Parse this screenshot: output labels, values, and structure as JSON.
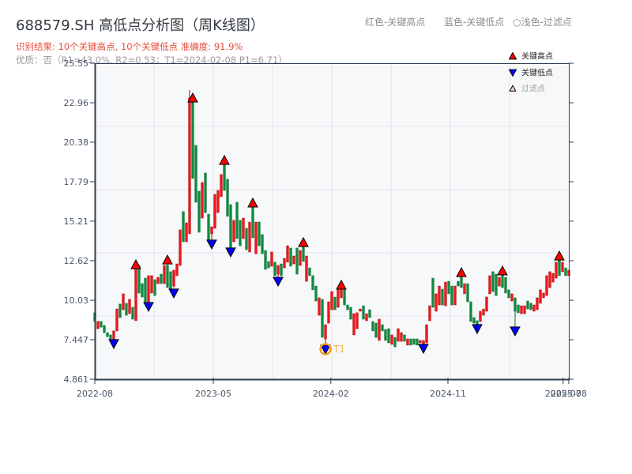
{
  "header": {
    "title": "688579.SH 高低点分析图（周K线图）",
    "result_line": "识别结果: 10个关键高点, 10个关键低点  准确度: 91.9%",
    "quality_line": "优质：否（R1=43.0%, R2=0.53；T1=2024-02-08 P1=6.71）",
    "color_key": [
      "红色-关键高点",
      "蓝色-关键低点",
      "○浅色-过滤点"
    ]
  },
  "colors": {
    "up_fill": "#f0161c",
    "up_stroke": "#b80000",
    "down_fill": "#0c8c3c",
    "down_stroke": "#08702f",
    "high_marker": "#ff0000",
    "low_marker": "#0000ff",
    "filtered_marker": "#ffd9d9",
    "marker_stroke": "#000000",
    "t1_ring": "#f39c12",
    "t1_text": "#f5b553",
    "plot_bg": "#f6f8fa",
    "grid": "#e1e5ea",
    "axis": "#2c3e50",
    "tick_label": "#4a5568"
  },
  "chart_data": {
    "type": "bar",
    "subtype": "candlestick",
    "title": "688579.SH 高低点分析图（周K线图）",
    "xlabel": "",
    "ylabel": "",
    "ylim": [
      4.861,
      25.55
    ],
    "y_ticks": [
      4.861,
      7.447,
      10.03,
      12.62,
      15.21,
      17.79,
      20.38,
      22.96,
      25.55
    ],
    "y_tick_labels": [
      "4.861",
      "7.447",
      "10.03",
      "12.62",
      "15.21",
      "17.79",
      "20.38",
      "22.96",
      "25.55"
    ],
    "x_ticks": [
      {
        "label": "2022-08",
        "pos": 0.0
      },
      {
        "label": "2023-05",
        "pos": 0.25
      },
      {
        "label": "2024-02",
        "pos": 0.498
      },
      {
        "label": "2024-11",
        "pos": 0.745
      },
      {
        "label": "2025-07",
        "pos": 0.988
      },
      {
        "label": "2025-08",
        "pos": 1.0
      }
    ],
    "grid": {
      "on": true,
      "h_divisions": 5,
      "v_divisions": 8
    },
    "candle_fields": [
      "open",
      "high",
      "low",
      "close"
    ],
    "candles": [
      [
        9.21,
        9.21,
        8.64,
        8.64
      ],
      [
        8.17,
        8.64,
        8.17,
        8.64
      ],
      [
        8.64,
        8.64,
        8.27,
        8.27
      ],
      [
        8.38,
        8.38,
        7.91,
        7.91
      ],
      [
        7.91,
        7.91,
        7.65,
        7.65
      ],
      [
        7.76,
        7.76,
        7.5,
        7.5
      ],
      [
        7.4,
        8.02,
        7.3,
        8.02
      ],
      [
        8.02,
        9.46,
        8.02,
        9.46
      ],
      [
        9.78,
        9.78,
        8.9,
        8.9
      ],
      [
        9.41,
        10.45,
        9.41,
        10.45
      ],
      [
        9.83,
        9.83,
        9.05,
        9.05
      ],
      [
        9.15,
        10.09,
        9.15,
        10.09
      ],
      [
        9.57,
        9.57,
        8.79,
        8.79
      ],
      [
        8.69,
        12.15,
        8.69,
        12.05
      ],
      [
        12.31,
        12.31,
        10.5,
        10.5
      ],
      [
        11.12,
        11.12,
        10.24,
        10.24
      ],
      [
        11.48,
        11.48,
        9.93,
        9.93
      ],
      [
        9.93,
        11.64,
        9.8,
        11.64
      ],
      [
        10.5,
        11.64,
        10.5,
        11.64
      ],
      [
        11.38,
        11.38,
        10.34,
        10.34
      ],
      [
        11.12,
        11.53,
        11.12,
        11.53
      ],
      [
        11.74,
        11.74,
        11.12,
        11.12
      ],
      [
        11.12,
        12.31,
        11.12,
        12.31
      ],
      [
        12.31,
        12.45,
        10.86,
        10.86
      ],
      [
        11.9,
        11.9,
        10.7,
        10.76
      ],
      [
        10.96,
        12.0,
        10.85,
        12.0
      ],
      [
        11.64,
        12.41,
        11.64,
        12.41
      ],
      [
        12.31,
        14.64,
        12.31,
        14.64
      ],
      [
        15.83,
        15.83,
        13.86,
        13.86
      ],
      [
        13.86,
        15.1,
        13.86,
        15.1
      ],
      [
        14.38,
        23.79,
        14.38,
        23.27
      ],
      [
        23.38,
        23.5,
        18.0,
        18.0
      ],
      [
        20.17,
        20.17,
        16.45,
        16.45
      ],
      [
        17.17,
        17.17,
        14.48,
        14.48
      ],
      [
        15.41,
        17.74,
        15.41,
        17.74
      ],
      [
        18.36,
        18.36,
        15.77,
        15.77
      ],
      [
        15.67,
        15.67,
        13.86,
        13.86
      ],
      [
        14.38,
        14.84,
        13.8,
        14.84
      ],
      [
        14.74,
        16.96,
        14.74,
        16.96
      ],
      [
        15.77,
        17.22,
        15.77,
        17.22
      ],
      [
        16.81,
        18.26,
        16.81,
        18.26
      ],
      [
        18.88,
        18.98,
        17.22,
        17.22
      ],
      [
        17.95,
        17.95,
        15.52,
        15.52
      ],
      [
        16.29,
        16.29,
        13.34,
        13.34
      ],
      [
        13.86,
        15.26,
        13.86,
        15.26
      ],
      [
        16.45,
        16.45,
        14.07,
        14.07
      ],
      [
        15.26,
        15.26,
        13.6,
        13.6
      ],
      [
        14.07,
        15.41,
        14.07,
        15.41
      ],
      [
        14.74,
        14.74,
        13.34,
        13.34
      ],
      [
        13.19,
        15.15,
        13.19,
        15.15
      ],
      [
        16.14,
        16.19,
        14.12,
        14.12
      ],
      [
        13.08,
        15.15,
        13.08,
        15.15
      ],
      [
        15.15,
        15.15,
        13.6,
        13.6
      ],
      [
        14.33,
        14.33,
        13.08,
        13.08
      ],
      [
        13.29,
        13.29,
        12.05,
        12.05
      ],
      [
        12.57,
        12.57,
        12.15,
        12.15
      ],
      [
        12.26,
        13.19,
        12.26,
        13.19
      ],
      [
        12.52,
        12.52,
        11.64,
        11.64
      ],
      [
        11.74,
        12.31,
        11.53,
        12.31
      ],
      [
        12.41,
        12.41,
        11.64,
        11.64
      ],
      [
        12.15,
        12.77,
        12.15,
        12.77
      ],
      [
        12.52,
        13.6,
        12.52,
        13.6
      ],
      [
        13.45,
        13.45,
        12.26,
        12.26
      ],
      [
        12.41,
        12.93,
        12.41,
        12.93
      ],
      [
        13.45,
        13.45,
        11.74,
        11.74
      ],
      [
        12.31,
        13.29,
        12.31,
        13.29
      ],
      [
        13.55,
        13.6,
        12.57,
        12.57
      ],
      [
        11.27,
        12.93,
        11.27,
        12.93
      ],
      [
        12.15,
        12.15,
        11.64,
        11.64
      ],
      [
        11.64,
        11.64,
        10.71,
        10.71
      ],
      [
        10.96,
        10.96,
        9.98,
        9.98
      ],
      [
        9.05,
        10.19,
        9.05,
        10.19
      ],
      [
        10.09,
        10.09,
        7.6,
        7.6
      ],
      [
        7.5,
        8.43,
        6.71,
        8.43
      ],
      [
        8.53,
        9.93,
        8.53,
        9.93
      ],
      [
        9.41,
        10.6,
        9.41,
        10.6
      ],
      [
        10.24,
        10.24,
        9.41,
        9.41
      ],
      [
        9.57,
        10.71,
        9.57,
        10.71
      ],
      [
        10.19,
        10.76,
        10.19,
        10.71
      ],
      [
        10.71,
        10.71,
        9.72,
        9.72
      ],
      [
        9.72,
        9.72,
        9.41,
        9.41
      ],
      [
        9.57,
        9.57,
        8.79,
        8.79
      ],
      [
        7.76,
        9.15,
        7.76,
        9.15
      ],
      [
        8.17,
        9.21,
        8.17,
        9.21
      ],
      [
        9.31,
        9.46,
        9.31,
        9.46
      ],
      [
        9.67,
        9.67,
        8.79,
        8.79
      ],
      [
        8.69,
        9.15,
        8.69,
        9.15
      ],
      [
        9.41,
        9.41,
        8.9,
        8.9
      ],
      [
        8.64,
        8.64,
        8.02,
        8.02
      ],
      [
        8.53,
        8.53,
        7.6,
        7.6
      ],
      [
        7.4,
        8.79,
        7.4,
        8.79
      ],
      [
        8.43,
        8.43,
        8.02,
        8.02
      ],
      [
        8.12,
        8.12,
        7.4,
        7.4
      ],
      [
        8.17,
        8.17,
        7.24,
        7.24
      ],
      [
        7.14,
        7.76,
        7.14,
        7.76
      ],
      [
        7.6,
        7.6,
        6.98,
        6.98
      ],
      [
        7.34,
        8.17,
        7.34,
        8.17
      ],
      [
        7.34,
        7.91,
        7.34,
        7.91
      ],
      [
        7.76,
        7.76,
        7.34,
        7.34
      ],
      [
        7.09,
        7.5,
        7.09,
        7.5
      ],
      [
        7.5,
        7.5,
        7.09,
        7.09
      ],
      [
        7.5,
        7.5,
        7.14,
        7.14
      ],
      [
        7.5,
        7.5,
        7.09,
        7.09
      ],
      [
        7.24,
        7.4,
        7.24,
        7.4
      ],
      [
        6.98,
        7.4,
        6.95,
        7.4
      ],
      [
        7.24,
        8.43,
        7.24,
        8.43
      ],
      [
        8.69,
        9.67,
        8.69,
        9.67
      ],
      [
        11.48,
        11.48,
        9.57,
        9.57
      ],
      [
        9.31,
        10.45,
        9.31,
        10.45
      ],
      [
        9.72,
        10.96,
        9.72,
        10.96
      ],
      [
        10.76,
        10.76,
        9.72,
        9.72
      ],
      [
        9.67,
        11.22,
        9.67,
        11.22
      ],
      [
        11.27,
        11.27,
        10.45,
        10.45
      ],
      [
        10.96,
        10.96,
        9.72,
        9.72
      ],
      [
        9.72,
        10.96,
        9.72,
        10.96
      ],
      [
        11.27,
        11.27,
        10.96,
        10.96
      ],
      [
        11.53,
        11.59,
        10.86,
        10.86
      ],
      [
        10.45,
        11.12,
        10.45,
        11.12
      ],
      [
        11.12,
        11.12,
        9.93,
        9.93
      ],
      [
        9.93,
        9.93,
        8.64,
        8.64
      ],
      [
        8.9,
        8.9,
        8.53,
        8.53
      ],
      [
        8.69,
        8.69,
        8.43,
        8.43
      ],
      [
        8.64,
        9.31,
        8.64,
        9.31
      ],
      [
        9.05,
        9.46,
        9.05,
        9.46
      ],
      [
        9.31,
        10.24,
        9.31,
        10.24
      ],
      [
        10.45,
        11.64,
        10.45,
        11.64
      ],
      [
        11.9,
        11.9,
        10.6,
        10.6
      ],
      [
        11.74,
        11.74,
        10.34,
        10.34
      ],
      [
        10.96,
        11.53,
        10.96,
        11.53
      ],
      [
        11.69,
        11.74,
        10.86,
        10.86
      ],
      [
        11.53,
        11.53,
        10.5,
        10.5
      ],
      [
        10.71,
        10.71,
        10.19,
        10.19
      ],
      [
        9.98,
        10.45,
        9.98,
        10.45
      ],
      [
        10.19,
        10.19,
        8.27,
        9.31
      ],
      [
        9.72,
        9.72,
        9.21,
        9.21
      ],
      [
        9.15,
        9.67,
        9.15,
        9.67
      ],
      [
        9.15,
        9.67,
        9.15,
        9.67
      ],
      [
        9.98,
        9.98,
        9.46,
        9.46
      ],
      [
        9.83,
        9.83,
        9.41,
        9.41
      ],
      [
        9.31,
        9.72,
        9.31,
        9.72
      ],
      [
        9.41,
        10.19,
        9.41,
        10.19
      ],
      [
        9.83,
        10.71,
        9.83,
        10.71
      ],
      [
        10.19,
        10.5,
        10.19,
        10.5
      ],
      [
        10.34,
        11.64,
        10.34,
        11.64
      ],
      [
        10.86,
        11.9,
        10.86,
        11.9
      ],
      [
        11.22,
        11.79,
        11.22,
        11.79
      ],
      [
        11.48,
        12.52,
        11.48,
        12.52
      ],
      [
        12.67,
        12.77,
        11.64,
        11.64
      ],
      [
        11.9,
        12.52,
        11.9,
        12.52
      ],
      [
        12.15,
        12.15,
        11.64,
        11.64
      ],
      [
        11.64,
        12.0,
        11.64,
        12.0
      ]
    ],
    "key_highs": [
      {
        "index": 13,
        "price": 12.36
      },
      {
        "index": 23,
        "price": 12.67
      },
      {
        "index": 31,
        "price": 23.27
      },
      {
        "index": 41,
        "price": 19.19
      },
      {
        "index": 50,
        "price": 16.4
      },
      {
        "index": 66,
        "price": 13.81
      },
      {
        "index": 78,
        "price": 11.02
      },
      {
        "index": 116,
        "price": 11.84
      },
      {
        "index": 129,
        "price": 11.95
      },
      {
        "index": 147,
        "price": 12.93
      }
    ],
    "key_lows": [
      {
        "index": 6,
        "price": 7.19
      },
      {
        "index": 17,
        "price": 9.62
      },
      {
        "index": 25,
        "price": 10.5
      },
      {
        "index": 37,
        "price": 13.71
      },
      {
        "index": 43,
        "price": 13.19
      },
      {
        "index": 58,
        "price": 11.27
      },
      {
        "index": 73,
        "price": 6.83
      },
      {
        "index": 104,
        "price": 6.88
      },
      {
        "index": 121,
        "price": 8.17
      },
      {
        "index": 133,
        "price": 8.02
      }
    ],
    "t1": {
      "index": 73,
      "label": "T1",
      "date": "2024-02-08",
      "price": 6.71,
      "marker_price": 6.83
    },
    "legend": [
      {
        "label": "关键高点",
        "marker": "triangle-up",
        "color": "#ff0000"
      },
      {
        "label": "关键低点",
        "marker": "triangle-down",
        "color": "#0000ff"
      },
      {
        "label": "过滤点",
        "marker": "triangle-up-light",
        "color": "#ffd9d9"
      }
    ],
    "legend_position": "upper right"
  }
}
